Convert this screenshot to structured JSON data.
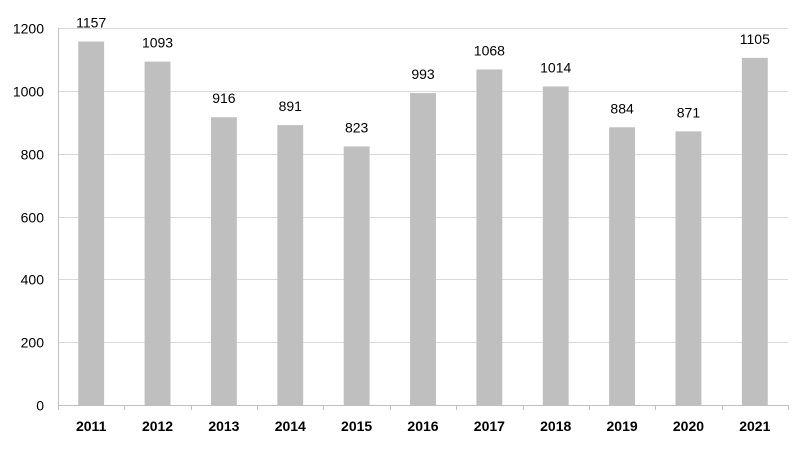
{
  "chart_data": {
    "type": "bar",
    "title": "",
    "xlabel": "",
    "ylabel": "",
    "categories": [
      "2011",
      "2012",
      "2013",
      "2014",
      "2015",
      "2016",
      "2017",
      "2018",
      "2019",
      "2020",
      "2021"
    ],
    "values": [
      1157,
      1093,
      916,
      891,
      823,
      993,
      1068,
      1014,
      884,
      871,
      1105
    ],
    "data_labels": [
      "1157",
      "1093",
      "916",
      "891",
      "823",
      "993",
      "1068",
      "1014",
      "884",
      "871",
      "1105"
    ],
    "ylim": [
      0,
      1200
    ],
    "y_ticks": [
      0,
      200,
      400,
      600,
      800,
      1000,
      1200
    ],
    "y_tick_labels": [
      "0",
      "200",
      "400",
      "600",
      "800",
      "1000",
      "1200"
    ],
    "grid": true,
    "legend": "none",
    "bar_color": "#bfbfbf",
    "grid_color": "#d9d9d9"
  }
}
